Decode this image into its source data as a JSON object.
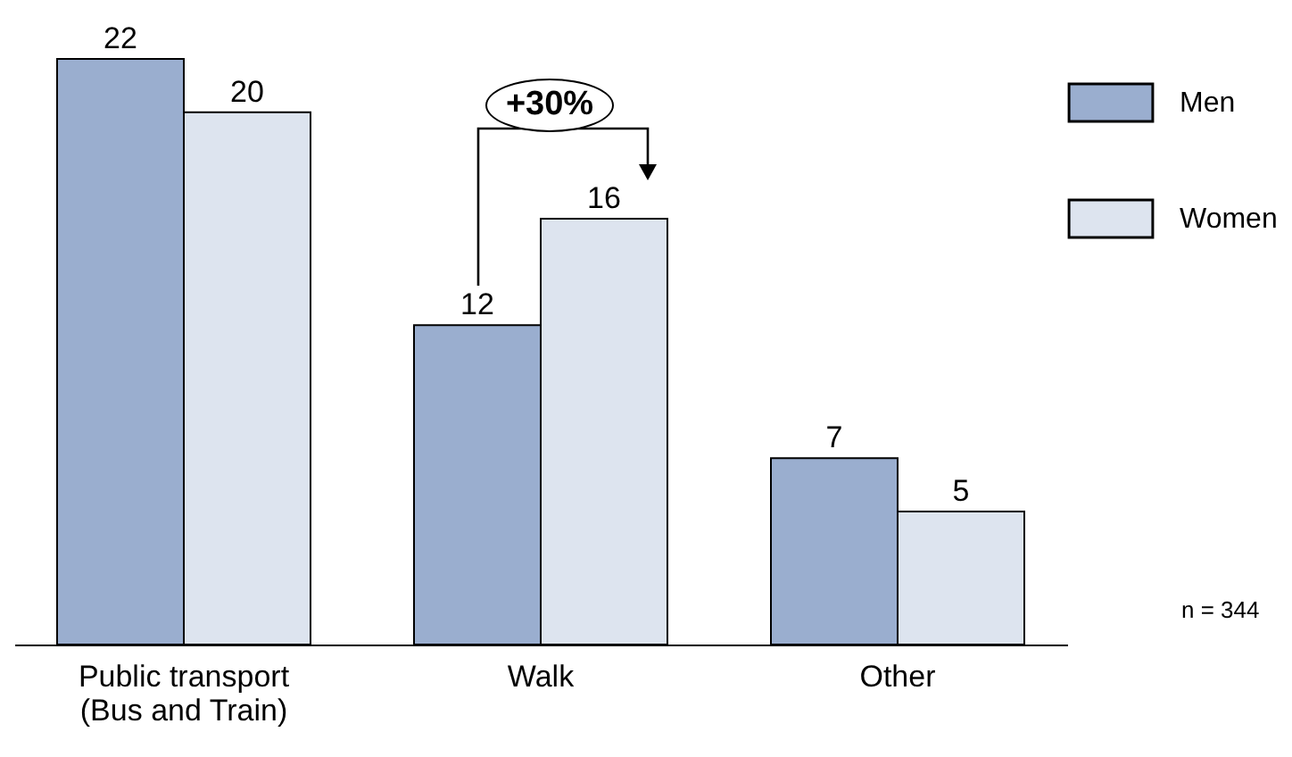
{
  "chart_data": {
    "type": "bar",
    "categories": [
      "Public transport\n(Bus and Train)",
      "Walk",
      "Other"
    ],
    "series": [
      {
        "name": "Men",
        "color": "#9aaecf",
        "values": [
          22,
          12,
          7
        ]
      },
      {
        "name": "Women",
        "color": "#dde4ef",
        "values": [
          20,
          16,
          5
        ]
      }
    ],
    "data_labels": true,
    "legend": "top right",
    "annotations": [
      "+30%",
      "n = 344"
    ]
  }
}
